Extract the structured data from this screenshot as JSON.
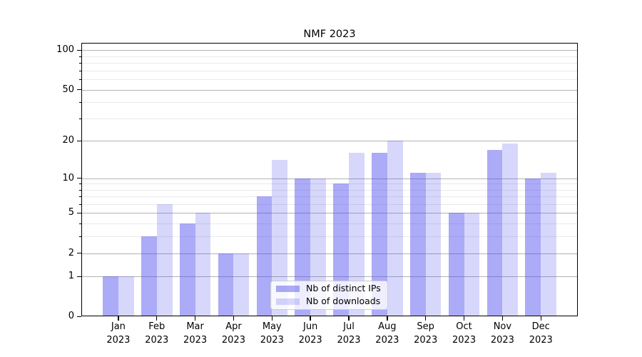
{
  "chart_data": {
    "type": "bar",
    "title": "NMF 2023",
    "categories": [
      "Jan 2023",
      "Feb 2023",
      "Mar 2023",
      "Apr 2023",
      "May 2023",
      "Jun 2023",
      "Jul 2023",
      "Aug 2023",
      "Sep 2023",
      "Oct 2023",
      "Nov 2023",
      "Dec 2023"
    ],
    "series": [
      {
        "name": "Nb of distinct IPs",
        "color": "rgba(68,68,238,0.45)",
        "values": [
          1,
          3,
          4,
          2,
          7,
          10,
          9,
          16,
          11,
          5,
          17,
          10
        ]
      },
      {
        "name": "Nb of downloads",
        "color": "rgba(68,68,238,0.21)",
        "values": [
          1,
          6,
          5,
          2,
          14,
          10,
          16,
          20,
          11,
          5,
          19,
          11
        ]
      }
    ],
    "xlabel": "",
    "ylabel": "",
    "yscale": "log1p",
    "ylim": [
      0,
      113
    ],
    "y_major_ticks": [
      0,
      1,
      2,
      5,
      10,
      20,
      50,
      100
    ],
    "y_minor_ticks": [
      3,
      4,
      6,
      7,
      8,
      9,
      30,
      40,
      60,
      70,
      80,
      90
    ],
    "grid": true,
    "legend_position": "lower-center"
  }
}
